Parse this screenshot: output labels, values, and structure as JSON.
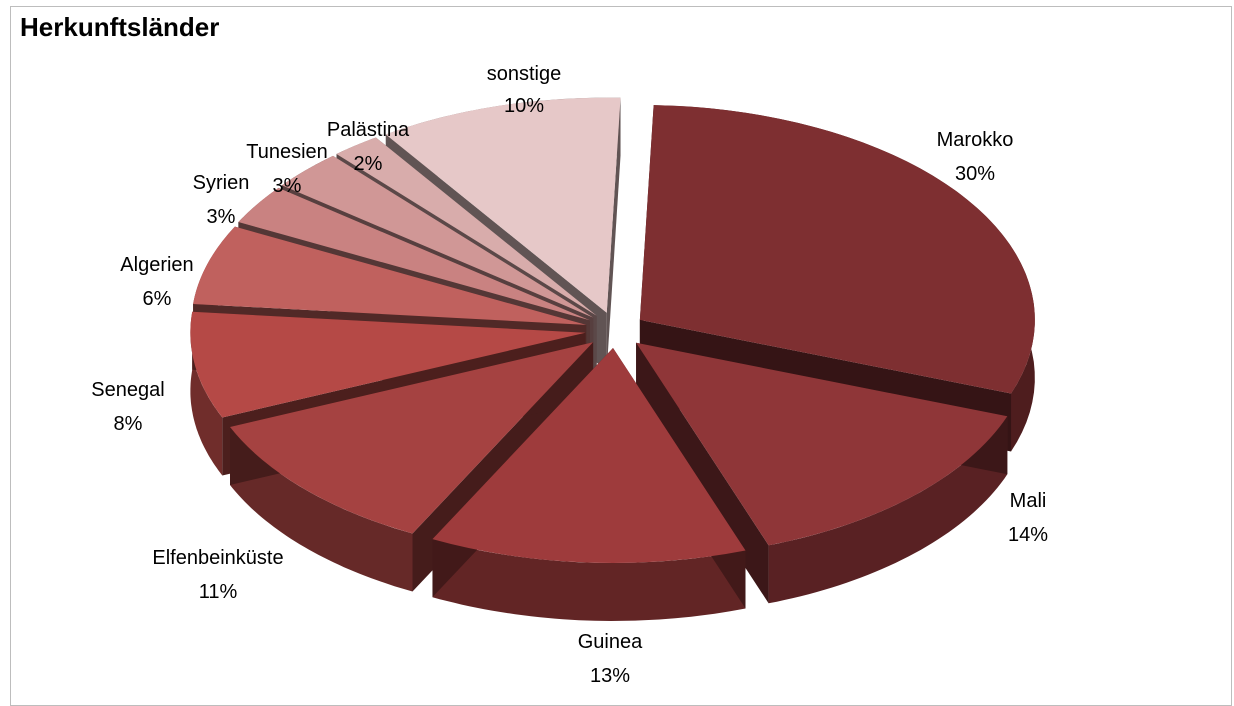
{
  "chart_data": {
    "type": "pie",
    "title": "Herkunftsländer",
    "slices": [
      {
        "label": "Marokko",
        "value": 30,
        "display": "30%",
        "color": "#7e2f31"
      },
      {
        "label": "Mali",
        "value": 14,
        "display": "14%",
        "color": "#8f3638"
      },
      {
        "label": "Guinea",
        "value": 13,
        "display": "13%",
        "color": "#9e3b3c"
      },
      {
        "label": "Elfenbeinküste",
        "value": 11,
        "display": "11%",
        "color": "#a54241"
      },
      {
        "label": "Senegal",
        "value": 8,
        "display": "8%",
        "color": "#b54946"
      },
      {
        "label": "Algerien",
        "value": 6,
        "display": "6%",
        "color": "#c0615e"
      },
      {
        "label": "Syrien",
        "value": 3,
        "display": "3%",
        "color": "#c98281"
      },
      {
        "label": "Tunesien",
        "value": 3,
        "display": "3%",
        "color": "#d09796"
      },
      {
        "label": "Palästina",
        "value": 2,
        "display": "2%",
        "color": "#d8acab"
      },
      {
        "label": "sonstige",
        "value": 10,
        "display": "10%",
        "color": "#e6c8c8"
      }
    ],
    "legend": "none",
    "style": "3d-exploded"
  }
}
